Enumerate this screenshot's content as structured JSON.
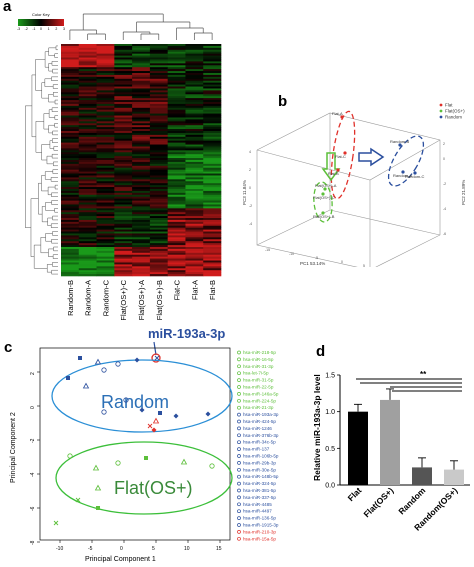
{
  "panels": {
    "a": {
      "letter": "a",
      "color_key": {
        "title": "Color Key",
        "min": -3,
        "max": 3,
        "ticks": [
          "-3",
          "-2",
          "-1",
          "0",
          "1",
          "2",
          "3"
        ],
        "low_color": "#1a9a1a",
        "mid_color": "#000000",
        "high_color": "#d11c1c"
      },
      "columns": [
        "Random-B",
        "Random-A",
        "Random-C",
        "Flat(OS+)-C",
        "Flat(OS+)-A",
        "Flat(OS+)-B",
        "Flat-C",
        "Flat-A",
        "Flat-B"
      ]
    },
    "b": {
      "letter": "b",
      "legend": [
        {
          "label": "Flat",
          "color": "#e0302a"
        },
        {
          "label": "Flat(OS+)",
          "color": "#5cbf3a"
        },
        {
          "label": "Random",
          "color": "#2b4f9e"
        }
      ],
      "axes": {
        "x": "PC1 53.14%",
        "y": "PC3 11.84%",
        "z": "PC2 21.89%"
      },
      "points": [
        {
          "label": "Flat-A",
          "group": "Flat"
        },
        {
          "label": "Flat-C",
          "group": "Flat"
        },
        {
          "label": "Flat-B",
          "group": "Flat"
        },
        {
          "label": "Flat(OS+)-A",
          "group": "Flat(OS+)"
        },
        {
          "label": "Flat(OS+)-C",
          "group": "Flat(OS+)"
        },
        {
          "label": "Flat(OS+)-B",
          "group": "Flat(OS+)"
        },
        {
          "label": "Random-B",
          "group": "Random"
        },
        {
          "label": "Random-A",
          "group": "Random"
        },
        {
          "label": "Random-C",
          "group": "Random"
        }
      ]
    },
    "c": {
      "letter": "c",
      "callout": "miR-193a-3p",
      "ellipse_labels": [
        "Random",
        "Flat(OS+)"
      ],
      "xlabel": "Principal Component 1",
      "ylabel": "Principal Component 2",
      "xticks": [
        "-10",
        "-5",
        "0",
        "5",
        "10",
        "15"
      ],
      "yticks": [
        "2",
        "0",
        "-2",
        "-4",
        "-6",
        "-8"
      ],
      "legend": [
        {
          "label": "hsa-miR-218-5p",
          "color": "#5cbf3a"
        },
        {
          "label": "hsa-miR-16-5p",
          "color": "#5cbf3a"
        },
        {
          "label": "hsa-miR-31-3p",
          "color": "#5cbf3a"
        },
        {
          "label": "hsa-let-7i-5p",
          "color": "#5cbf3a"
        },
        {
          "label": "hsa-miR-31-5p",
          "color": "#5cbf3a"
        },
        {
          "label": "hsa-miR-22-5p",
          "color": "#5cbf3a"
        },
        {
          "label": "hsa-miR-146a-5p",
          "color": "#5cbf3a"
        },
        {
          "label": "hsa-miR-224-5p",
          "color": "#5cbf3a"
        },
        {
          "label": "hsa-miR-21-3p",
          "color": "#5cbf3a"
        },
        {
          "label": "hsa-miR-193a-3p",
          "color": "#2b4f9e"
        },
        {
          "label": "hsa-miR-424-5p",
          "color": "#2b4f9e"
        },
        {
          "label": "hsa-miR-1246",
          "color": "#2b4f9e"
        },
        {
          "label": "hsa-miR-376b-3p",
          "color": "#2b4f9e"
        },
        {
          "label": "hsa-miR-34c-5p",
          "color": "#2b4f9e"
        },
        {
          "label": "hsa-miR-137",
          "color": "#2b4f9e"
        },
        {
          "label": "hsa-miR-106b-5p",
          "color": "#2b4f9e"
        },
        {
          "label": "hsa-miR-29b-3p",
          "color": "#2b4f9e"
        },
        {
          "label": "hsa-miR-30e-5p",
          "color": "#2b4f9e"
        },
        {
          "label": "hsa-miR-148b-5p",
          "color": "#2b4f9e"
        },
        {
          "label": "hsa-miR-324-5p",
          "color": "#2b4f9e"
        },
        {
          "label": "hsa-miR-381-5p",
          "color": "#2b4f9e"
        },
        {
          "label": "hsa-miR-337-5p",
          "color": "#2b4f9e"
        },
        {
          "label": "hsa-miR-4485",
          "color": "#2b4f9e"
        },
        {
          "label": "hsa-miR-4497",
          "color": "#2b4f9e"
        },
        {
          "label": "hsa-miR-136-5p",
          "color": "#2b4f9e"
        },
        {
          "label": "hsa-miR-1915-3p",
          "color": "#2b4f9e"
        },
        {
          "label": "hsa-miR-210-3p",
          "color": "#e0302a"
        },
        {
          "label": "hsa-miR-15a-5p",
          "color": "#e0302a"
        }
      ]
    },
    "d": {
      "letter": "d",
      "significance": "**"
    }
  },
  "chart_data": [
    {
      "type": "bar",
      "panel": "d",
      "categories": [
        "Flat",
        "Flat(OS+)",
        "Random",
        "Random(OS+)"
      ],
      "values": [
        1.0,
        1.16,
        0.24,
        0.21
      ],
      "errors": [
        0.1,
        0.15,
        0.13,
        0.12
      ],
      "colors": [
        "#000000",
        "#a0a0a0",
        "#555555",
        "#c9c9c9"
      ],
      "ylabel": "Relative miR-193a-3p level",
      "xlabel": "",
      "ylim": [
        0,
        1.5
      ],
      "yticks": [
        "0.0",
        "0.5",
        "1.0",
        "1.5"
      ]
    }
  ]
}
